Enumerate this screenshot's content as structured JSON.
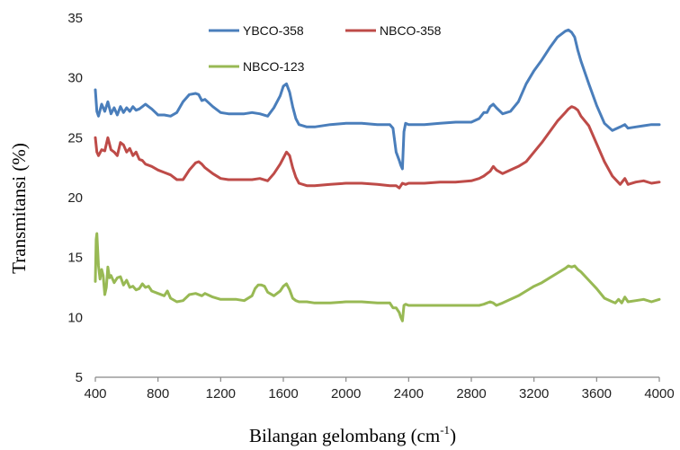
{
  "chart_data": {
    "type": "line",
    "xlabel": "Bilangan gelombang (cm",
    "xlabel_sup": "-1",
    "xlabel_end": ")",
    "ylabel": "Transmitansi (%)",
    "xlim": [
      400,
      4000
    ],
    "ylim": [
      5,
      35
    ],
    "xticks": [
      400,
      800,
      1200,
      1600,
      2000,
      2400,
      2800,
      3200,
      3600,
      4000
    ],
    "yticks": [
      5,
      10,
      15,
      20,
      25,
      30,
      35
    ],
    "grid": false,
    "legend": "top-center",
    "series": [
      {
        "name": "YBCO-358",
        "color": "#4a7ebb",
        "x": [
          400,
          410,
          420,
          440,
          460,
          480,
          500,
          520,
          540,
          560,
          580,
          600,
          620,
          640,
          660,
          680,
          700,
          720,
          740,
          760,
          800,
          840,
          880,
          920,
          960,
          1000,
          1040,
          1060,
          1080,
          1100,
          1150,
          1200,
          1250,
          1300,
          1350,
          1400,
          1450,
          1500,
          1540,
          1580,
          1600,
          1620,
          1640,
          1660,
          1680,
          1700,
          1750,
          1800,
          1900,
          2000,
          2100,
          2200,
          2280,
          2300,
          2320,
          2340,
          2350,
          2360,
          2370,
          2380,
          2400,
          2500,
          2600,
          2700,
          2800,
          2850,
          2880,
          2900,
          2920,
          2940,
          2960,
          3000,
          3050,
          3100,
          3150,
          3200,
          3250,
          3300,
          3350,
          3400,
          3420,
          3440,
          3460,
          3480,
          3500,
          3550,
          3600,
          3650,
          3700,
          3750,
          3780,
          3800,
          3850,
          3900,
          3950,
          4000
        ],
        "y": [
          29,
          27.2,
          26.8,
          27.8,
          27.2,
          28,
          27,
          27.5,
          26.9,
          27.6,
          27.1,
          27.5,
          27.2,
          27.6,
          27.3,
          27.4,
          27.6,
          27.8,
          27.6,
          27.4,
          26.9,
          26.9,
          26.8,
          27.1,
          28,
          28.6,
          28.7,
          28.6,
          28.1,
          28.2,
          27.6,
          27.1,
          27,
          27,
          27,
          27.1,
          27,
          26.8,
          27.5,
          28.5,
          29.3,
          29.5,
          28.8,
          27.6,
          26.6,
          26.1,
          25.9,
          25.9,
          26.1,
          26.2,
          26.2,
          26.1,
          26.1,
          25.8,
          23.8,
          23.1,
          22.7,
          22.4,
          25.5,
          26.2,
          26.1,
          26.1,
          26.2,
          26.3,
          26.3,
          26.6,
          27.1,
          27.1,
          27.6,
          27.8,
          27.5,
          27,
          27.2,
          28,
          29.5,
          30.6,
          31.5,
          32.5,
          33.4,
          33.9,
          34,
          33.8,
          33.4,
          32.3,
          31.4,
          29.5,
          27.7,
          26.2,
          25.6,
          25.9,
          26.1,
          25.8,
          25.9,
          26,
          26.1,
          26.1
        ]
      },
      {
        "name": "NBCO-358",
        "color": "#be4b48",
        "x": [
          400,
          410,
          420,
          440,
          460,
          480,
          500,
          520,
          540,
          560,
          580,
          600,
          620,
          640,
          660,
          680,
          700,
          720,
          760,
          800,
          840,
          880,
          920,
          960,
          1000,
          1040,
          1060,
          1080,
          1100,
          1150,
          1200,
          1250,
          1300,
          1350,
          1400,
          1450,
          1500,
          1540,
          1580,
          1600,
          1620,
          1640,
          1660,
          1680,
          1700,
          1750,
          1800,
          1900,
          2000,
          2100,
          2200,
          2280,
          2300,
          2320,
          2340,
          2360,
          2380,
          2400,
          2500,
          2600,
          2700,
          2800,
          2850,
          2880,
          2900,
          2920,
          2940,
          2960,
          3000,
          3050,
          3100,
          3150,
          3200,
          3250,
          3300,
          3350,
          3400,
          3420,
          3440,
          3460,
          3480,
          3500,
          3550,
          3600,
          3650,
          3700,
          3750,
          3780,
          3800,
          3850,
          3900,
          3950,
          4000
        ],
        "y": [
          25,
          23.8,
          23.5,
          24,
          23.9,
          25,
          24,
          23.8,
          23.5,
          24.6,
          24.4,
          23.8,
          24.1,
          23.5,
          23.8,
          23.2,
          23.1,
          22.8,
          22.6,
          22.3,
          22.1,
          21.9,
          21.5,
          21.5,
          22.3,
          22.9,
          23,
          22.8,
          22.5,
          22,
          21.6,
          21.5,
          21.5,
          21.5,
          21.5,
          21.6,
          21.4,
          22,
          22.8,
          23.3,
          23.8,
          23.5,
          22.5,
          21.7,
          21.2,
          21,
          21,
          21.1,
          21.2,
          21.2,
          21.1,
          21,
          21,
          21,
          20.8,
          21.2,
          21.1,
          21.2,
          21.2,
          21.3,
          21.3,
          21.4,
          21.6,
          21.8,
          22,
          22.2,
          22.6,
          22.3,
          22,
          22.3,
          22.6,
          23,
          23.8,
          24.6,
          25.5,
          26.4,
          27.1,
          27.4,
          27.6,
          27.5,
          27.3,
          26.8,
          26,
          24.5,
          23,
          21.8,
          21.1,
          21.6,
          21.1,
          21.3,
          21.4,
          21.2,
          21.3
        ]
      },
      {
        "name": "NBCO-123",
        "color": "#98b954",
        "x": [
          400,
          405,
          410,
          420,
          430,
          440,
          450,
          460,
          470,
          480,
          490,
          500,
          520,
          540,
          560,
          580,
          600,
          620,
          640,
          660,
          680,
          700,
          720,
          740,
          760,
          800,
          840,
          860,
          880,
          920,
          960,
          1000,
          1040,
          1080,
          1100,
          1150,
          1200,
          1250,
          1300,
          1350,
          1400,
          1420,
          1440,
          1460,
          1480,
          1500,
          1540,
          1580,
          1600,
          1620,
          1640,
          1660,
          1680,
          1700,
          1750,
          1800,
          1900,
          2000,
          2100,
          2200,
          2280,
          2300,
          2320,
          2340,
          2350,
          2360,
          2370,
          2380,
          2400,
          2500,
          2600,
          2700,
          2800,
          2850,
          2880,
          2900,
          2920,
          2940,
          2960,
          3000,
          3050,
          3100,
          3150,
          3200,
          3250,
          3300,
          3350,
          3400,
          3420,
          3440,
          3460,
          3480,
          3500,
          3550,
          3600,
          3650,
          3700,
          3720,
          3740,
          3760,
          3780,
          3800,
          3850,
          3900,
          3950,
          4000
        ],
        "y": [
          13,
          16.5,
          17,
          14.3,
          13.2,
          14,
          13.5,
          11.9,
          12.5,
          14.2,
          13.3,
          13.5,
          12.9,
          13.3,
          13.4,
          12.7,
          13.1,
          12.5,
          12.6,
          12.3,
          12.4,
          12.8,
          12.5,
          12.6,
          12.2,
          12,
          11.8,
          12.2,
          11.6,
          11.3,
          11.4,
          11.9,
          12,
          11.8,
          12,
          11.7,
          11.5,
          11.5,
          11.5,
          11.4,
          11.8,
          12.4,
          12.7,
          12.7,
          12.6,
          12.1,
          11.8,
          12.2,
          12.6,
          12.8,
          12.3,
          11.6,
          11.4,
          11.3,
          11.3,
          11.2,
          11.2,
          11.3,
          11.3,
          11.2,
          11.2,
          10.8,
          10.8,
          10.4,
          10,
          9.7,
          11,
          11.1,
          11,
          11,
          11,
          11,
          11,
          11,
          11.1,
          11.2,
          11.3,
          11.2,
          11,
          11.2,
          11.5,
          11.8,
          12.2,
          12.6,
          12.9,
          13.3,
          13.7,
          14.1,
          14.3,
          14.2,
          14.3,
          14,
          13.8,
          13.1,
          12.4,
          11.6,
          11.3,
          11.2,
          11.5,
          11.2,
          11.7,
          11.3,
          11.4,
          11.5,
          11.3,
          11.5
        ]
      }
    ]
  }
}
